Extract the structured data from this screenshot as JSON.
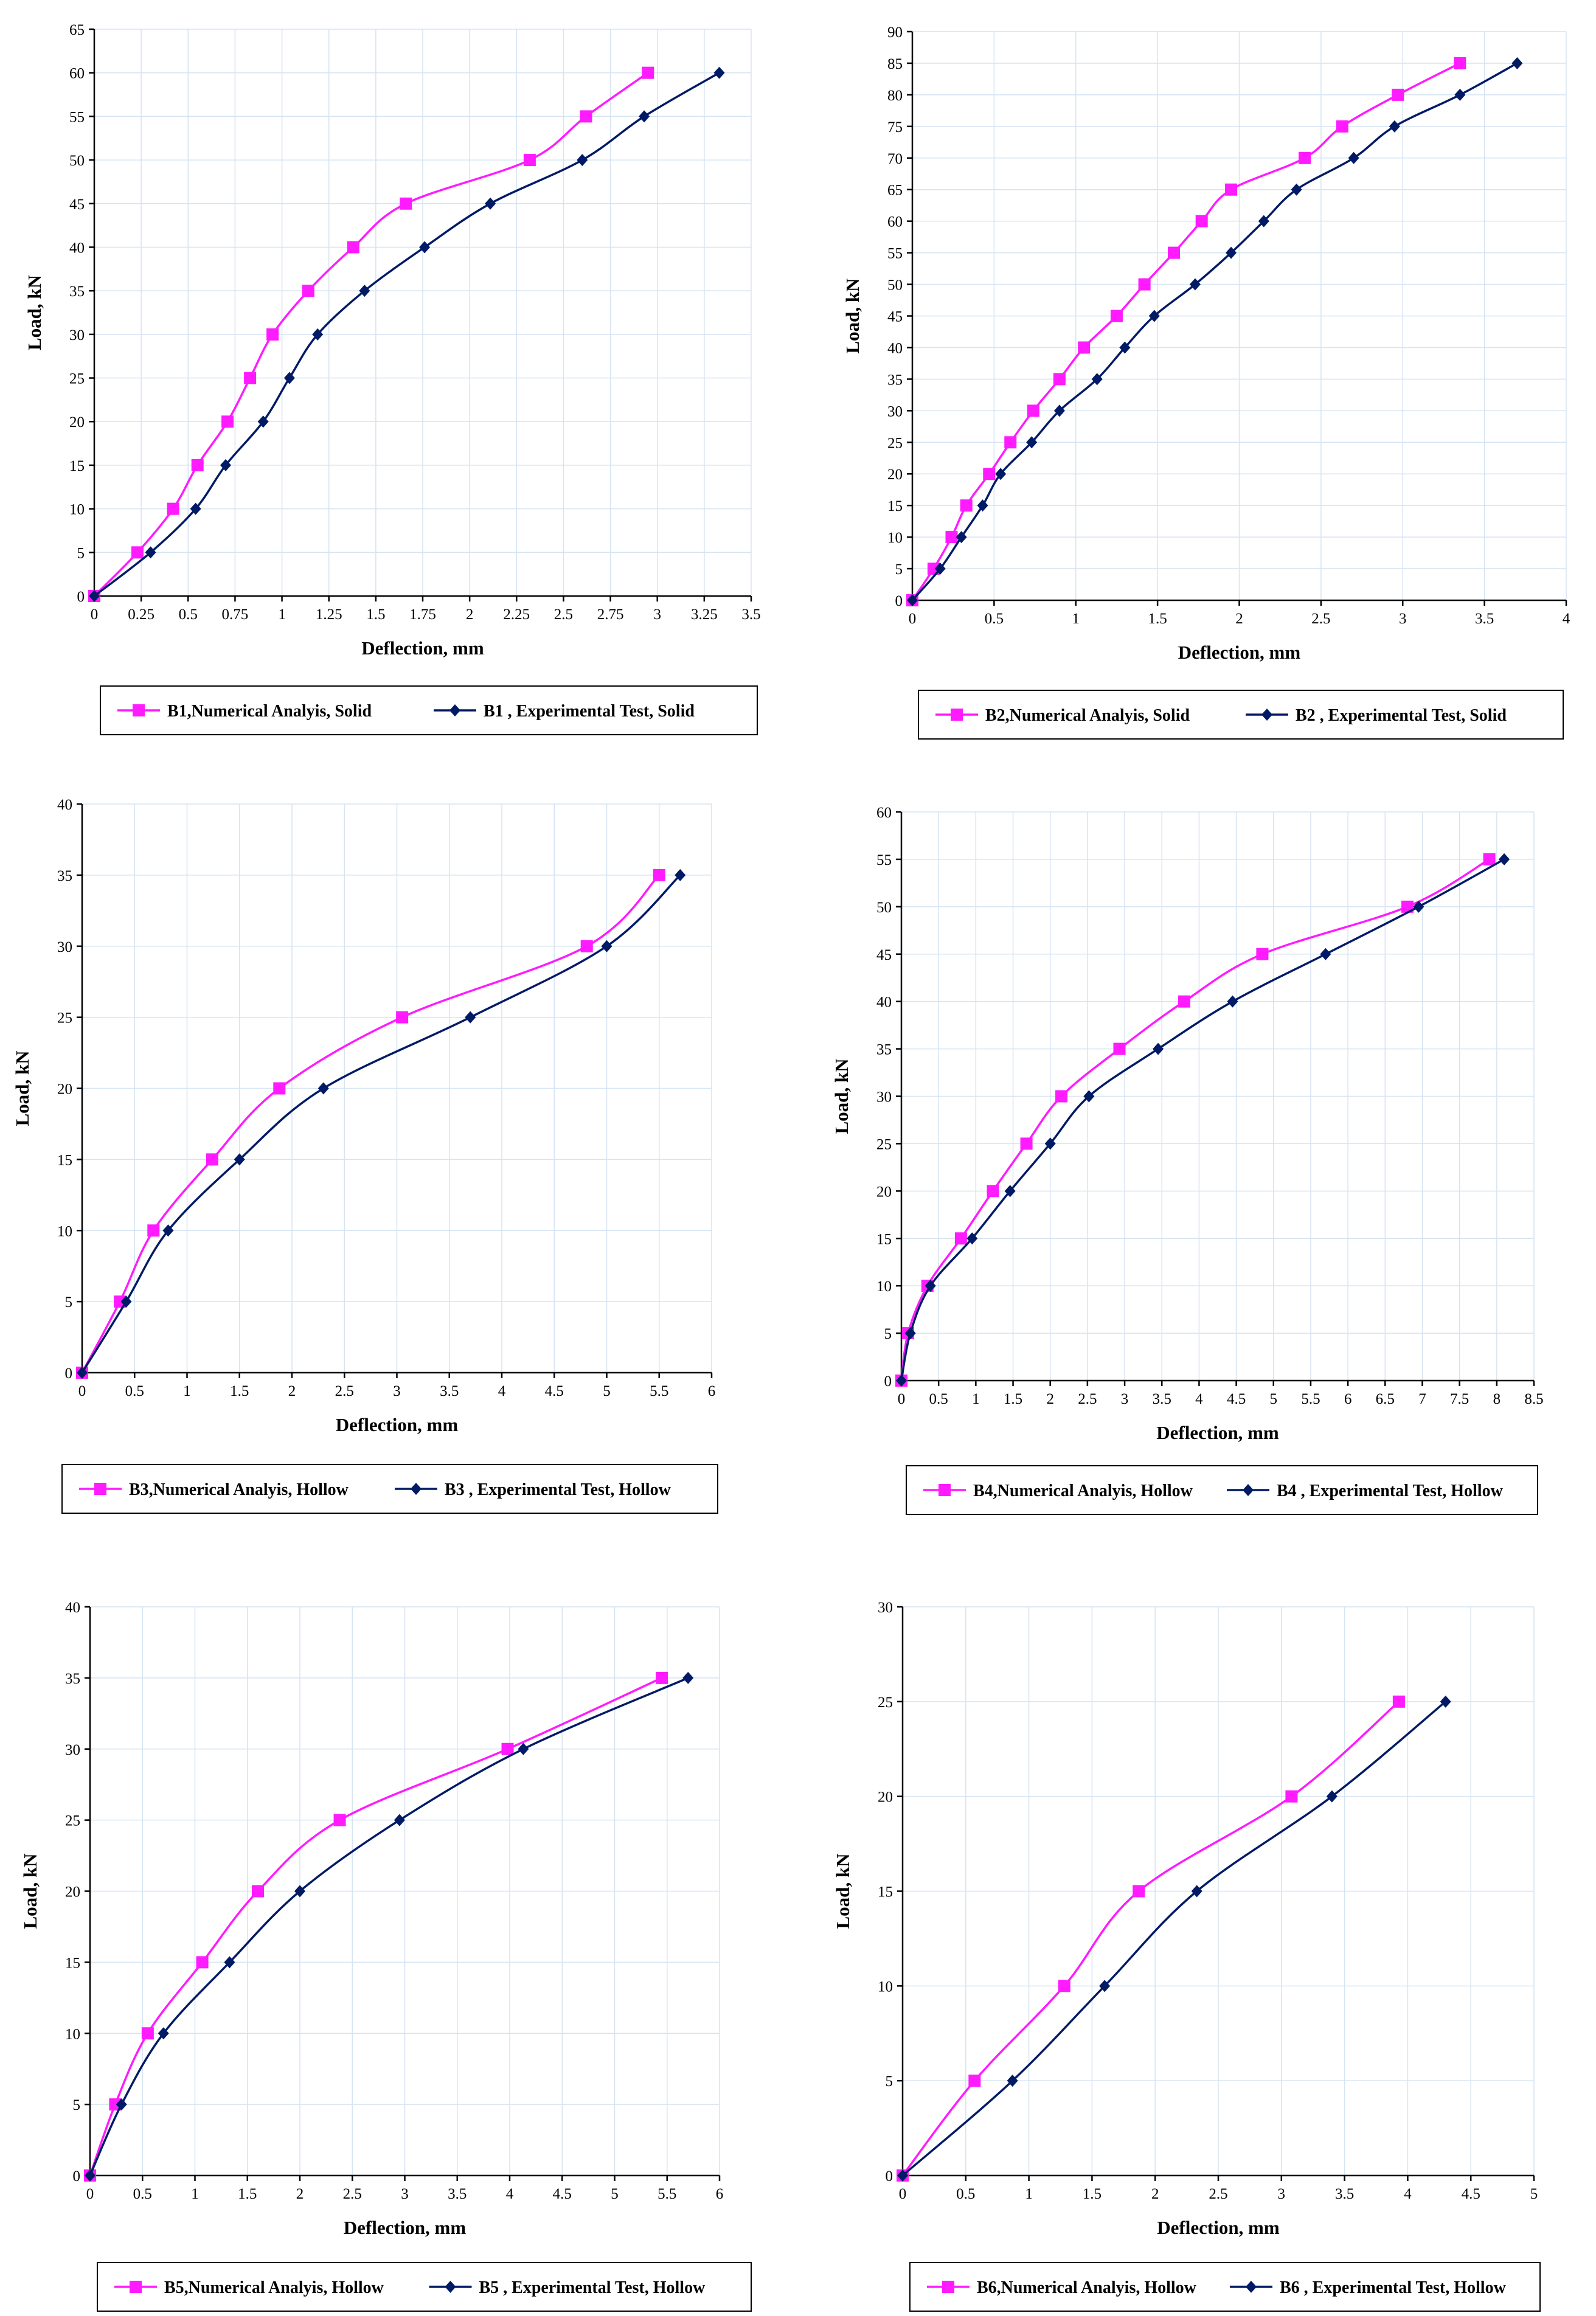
{
  "colors": {
    "numerical": "#ff1aff",
    "experimental": "#001a66"
  },
  "chart_data": [
    {
      "type": "line",
      "title": "",
      "xlabel": "Deflection, mm",
      "ylabel": "Load, kN",
      "xlim": [
        0,
        3.5
      ],
      "ylim": [
        0,
        65
      ],
      "xticks": [
        "0",
        "0.25",
        "0.5",
        "0.75",
        "1",
        "1.25",
        "1.5",
        "1.75",
        "2",
        "2.25",
        "2.5",
        "2.75",
        "3",
        "3.25",
        "3.5"
      ],
      "yticks": [
        "0",
        "5",
        "10",
        "15",
        "20",
        "25",
        "30",
        "35",
        "40",
        "45",
        "50",
        "55",
        "60",
        "65"
      ],
      "legend": [
        "B1,Numerical Analyis, Solid",
        "B1 , Experimental Test, Solid"
      ],
      "series": [
        {
          "name": "B1,Numerical Analyis, Solid",
          "x": [
            0,
            0.23,
            0.42,
            0.55,
            0.71,
            0.83,
            0.95,
            1.14,
            1.38,
            1.66,
            2.32,
            2.62,
            2.95
          ],
          "y": [
            0,
            5,
            10,
            15,
            20,
            25,
            30,
            35,
            40,
            45,
            50,
            55,
            60
          ]
        },
        {
          "name": "B1 , Experimental Test, Solid",
          "x": [
            0,
            0.3,
            0.54,
            0.7,
            0.9,
            1.04,
            1.19,
            1.44,
            1.76,
            2.11,
            2.6,
            2.93,
            3.33
          ],
          "y": [
            0,
            5,
            10,
            15,
            20,
            25,
            30,
            35,
            40,
            45,
            50,
            55,
            60
          ]
        }
      ]
    },
    {
      "type": "line",
      "title": "",
      "xlabel": "Deflection, mm",
      "ylabel": "Load, kN",
      "xlim": [
        0,
        4
      ],
      "ylim": [
        0,
        90
      ],
      "xticks": [
        "0",
        "0.5",
        "1",
        "1.5",
        "2",
        "2.5",
        "3",
        "3.5",
        "4"
      ],
      "yticks": [
        "0",
        "5",
        "10",
        "15",
        "20",
        "25",
        "30",
        "35",
        "40",
        "45",
        "50",
        "55",
        "60",
        "65",
        "70",
        "75",
        "80",
        "85",
        "90"
      ],
      "legend": [
        "B2,Numerical Analyis, Solid",
        "B2 , Experimental Test, Solid"
      ],
      "series": [
        {
          "name": "B2,Numerical Analyis, Solid",
          "x": [
            0,
            0.13,
            0.24,
            0.33,
            0.47,
            0.6,
            0.74,
            0.9,
            1.05,
            1.25,
            1.42,
            1.6,
            1.77,
            1.95,
            2.4,
            2.63,
            2.97,
            3.35
          ],
          "y": [
            0,
            5,
            10,
            15,
            20,
            25,
            30,
            35,
            40,
            45,
            50,
            55,
            60,
            65,
            70,
            75,
            80,
            85
          ]
        },
        {
          "name": "B2 , Experimental Test, Solid",
          "x": [
            0,
            0.17,
            0.3,
            0.43,
            0.54,
            0.73,
            0.9,
            1.13,
            1.3,
            1.48,
            1.73,
            1.95,
            2.15,
            2.35,
            2.7,
            2.95,
            3.35,
            3.7
          ],
          "y": [
            0,
            5,
            10,
            15,
            20,
            25,
            30,
            35,
            40,
            45,
            50,
            55,
            60,
            65,
            70,
            75,
            80,
            85
          ]
        }
      ]
    },
    {
      "type": "line",
      "title": "",
      "xlabel": "Deflection, mm",
      "ylabel": "Load, kN",
      "xlim": [
        0,
        6
      ],
      "ylim": [
        0,
        40
      ],
      "xticks": [
        "0",
        "0.5",
        "1",
        "1.5",
        "2",
        "2.5",
        "3",
        "3.5",
        "4",
        "4.5",
        "5",
        "5.5",
        "6"
      ],
      "yticks": [
        "0",
        "5",
        "10",
        "15",
        "20",
        "25",
        "30",
        "35",
        "40"
      ],
      "legend": [
        "B3,Numerical Analyis, Hollow",
        "B3 , Experimental Test, Hollow"
      ],
      "series": [
        {
          "name": "B3,Numerical Analyis, Hollow",
          "x": [
            0,
            0.36,
            0.68,
            1.24,
            1.88,
            3.05,
            4.81,
            5.5
          ],
          "y": [
            0,
            5,
            10,
            15,
            20,
            25,
            30,
            35
          ]
        },
        {
          "name": "B3 , Experimental Test, Hollow",
          "x": [
            0,
            0.42,
            0.82,
            1.5,
            2.3,
            3.7,
            5.0,
            5.7
          ],
          "y": [
            0,
            5,
            10,
            15,
            20,
            25,
            30,
            35
          ]
        }
      ]
    },
    {
      "type": "line",
      "title": "",
      "xlabel": "Deflection, mm",
      "ylabel": "Load, kN",
      "xlim": [
        0,
        8.5
      ],
      "ylim": [
        0,
        60
      ],
      "xticks": [
        "0",
        "0.5",
        "1",
        "1.5",
        "2",
        "2.5",
        "3",
        "3.5",
        "4",
        "4.5",
        "5",
        "5.5",
        "6",
        "6.5",
        "7",
        "7.5",
        "8",
        "8.5"
      ],
      "yticks": [
        "0",
        "5",
        "10",
        "15",
        "20",
        "25",
        "30",
        "35",
        "40",
        "45",
        "50",
        "55",
        "60"
      ],
      "legend": [
        "B4,Numerical Analyis, Hollow",
        "B4 , Experimental Test, Hollow"
      ],
      "series": [
        {
          "name": "B4,Numerical Analyis, Hollow",
          "x": [
            0,
            0.09,
            0.35,
            0.8,
            1.23,
            1.68,
            2.15,
            2.93,
            3.8,
            4.85,
            6.8,
            7.9
          ],
          "y": [
            0,
            5,
            10,
            15,
            20,
            25,
            30,
            35,
            40,
            45,
            50,
            55
          ]
        },
        {
          "name": "B4 , Experimental Test, Hollow",
          "x": [
            0,
            0.12,
            0.39,
            0.95,
            1.46,
            2.0,
            2.52,
            3.45,
            4.45,
            5.7,
            6.95,
            8.1
          ],
          "y": [
            0,
            5,
            10,
            15,
            20,
            25,
            30,
            35,
            40,
            45,
            50,
            55
          ]
        }
      ]
    },
    {
      "type": "line",
      "title": "",
      "xlabel": "Deflection, mm",
      "ylabel": "Load, kN",
      "xlim": [
        0,
        6
      ],
      "ylim": [
        0,
        40
      ],
      "xticks": [
        "0",
        "0.5",
        "1",
        "1.5",
        "2",
        "2.5",
        "3",
        "3.5",
        "4",
        "4.5",
        "5",
        "5.5",
        "6"
      ],
      "yticks": [
        "0",
        "5",
        "10",
        "15",
        "20",
        "25",
        "30",
        "35",
        "40"
      ],
      "legend": [
        "B5,Numerical Analyis, Hollow",
        "B5 , Experimental Test, Hollow"
      ],
      "series": [
        {
          "name": "B5,Numerical Analyis, Hollow",
          "x": [
            0,
            0.24,
            0.55,
            1.07,
            1.6,
            2.38,
            3.98,
            5.45
          ],
          "y": [
            0,
            5,
            10,
            15,
            20,
            25,
            30,
            35
          ]
        },
        {
          "name": "B5 , Experimental Test, Hollow",
          "x": [
            0,
            0.3,
            0.7,
            1.33,
            2.0,
            2.95,
            4.13,
            5.7
          ],
          "y": [
            0,
            5,
            10,
            15,
            20,
            25,
            30,
            35
          ]
        }
      ]
    },
    {
      "type": "line",
      "title": "",
      "xlabel": "Deflection, mm",
      "ylabel": "Load, kN",
      "xlim": [
        0,
        5
      ],
      "ylim": [
        0,
        30
      ],
      "xticks": [
        "0",
        "0.5",
        "1",
        "1.5",
        "2",
        "2.5",
        "3",
        "3.5",
        "4",
        "4.5",
        "5"
      ],
      "yticks": [
        "0",
        "5",
        "10",
        "15",
        "20",
        "25",
        "30"
      ],
      "legend": [
        "B6,Numerical Analyis, Hollow",
        "B6 , Experimental Test, Hollow"
      ],
      "series": [
        {
          "name": "B6,Numerical Analyis, Hollow",
          "x": [
            0,
            0.57,
            1.28,
            1.87,
            3.08,
            3.93
          ],
          "y": [
            0,
            5,
            10,
            15,
            20,
            25
          ]
        },
        {
          "name": "B6 , Experimental Test, Hollow",
          "x": [
            0,
            0.87,
            1.6,
            2.33,
            3.4,
            4.3
          ],
          "y": [
            0,
            5,
            10,
            15,
            20,
            25
          ]
        }
      ]
    }
  ]
}
